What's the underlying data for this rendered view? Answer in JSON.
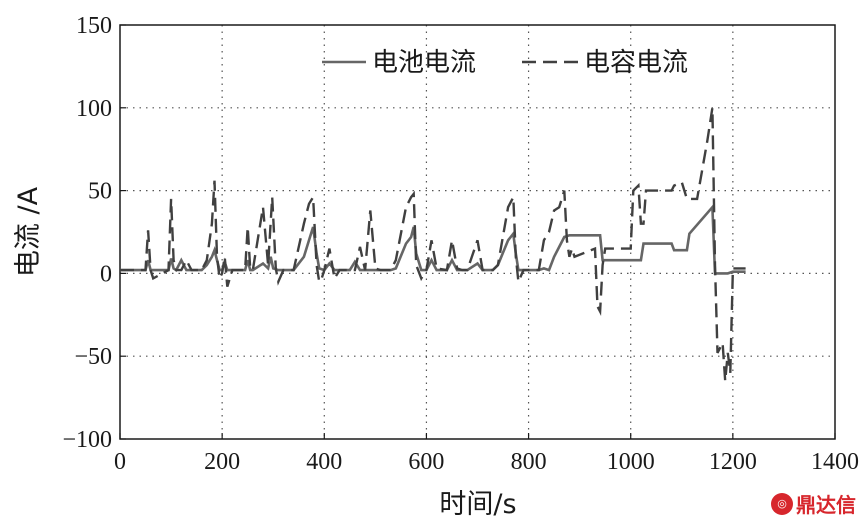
{
  "chart_data": {
    "type": "line",
    "title": "",
    "xlabel": "时间/s",
    "ylabel": "电流 /A",
    "xlim": [
      0,
      1400
    ],
    "ylim": [
      -100,
      150
    ],
    "xticks": [
      0,
      200,
      400,
      600,
      800,
      1000,
      1200,
      1400
    ],
    "yticks": [
      -100,
      -50,
      0,
      50,
      100,
      150
    ],
    "xtick_labels": [
      "0",
      "200",
      "400",
      "600",
      "800",
      "1000",
      "1200",
      "1400"
    ],
    "ytick_labels": [
      "−100",
      "−50",
      "0",
      "50",
      "100",
      "150"
    ],
    "grid": true,
    "legend_position": "top-right",
    "series": [
      {
        "name": "电池电流",
        "style": "solid",
        "color": "#666666",
        "x": [
          0,
          50,
          55,
          60,
          95,
          100,
          105,
          110,
          120,
          130,
          150,
          160,
          170,
          180,
          185,
          190,
          195,
          200,
          205,
          210,
          220,
          230,
          245,
          250,
          255,
          260,
          280,
          290,
          295,
          300,
          310,
          330,
          340,
          360,
          370,
          378,
          385,
          390,
          400,
          410,
          420,
          430,
          440,
          450,
          460,
          470,
          490,
          500,
          510,
          520,
          530,
          540,
          560,
          570,
          575,
          580,
          590,
          600,
          610,
          620,
          640,
          650,
          660,
          680,
          700,
          710,
          720,
          730,
          740,
          760,
          770,
          775,
          780,
          800,
          820,
          830,
          840,
          850,
          860,
          870,
          880,
          940,
          945,
          960,
          1020,
          1025,
          1080,
          1085,
          1110,
          1115,
          1160,
          1165,
          1190,
          1200,
          1225
        ],
        "y": [
          2,
          2,
          8,
          2,
          2,
          9,
          3,
          2,
          8,
          2,
          2,
          2,
          5,
          10,
          14,
          8,
          2,
          2,
          7,
          2,
          2,
          2,
          2,
          8,
          2,
          2,
          6,
          3,
          10,
          3,
          2,
          2,
          2,
          10,
          20,
          28,
          12,
          3,
          2,
          6,
          2,
          2,
          2,
          2,
          7,
          2,
          2,
          2,
          2,
          2,
          2,
          3,
          18,
          22,
          28,
          12,
          2,
          2,
          8,
          2,
          2,
          8,
          2,
          2,
          6,
          2,
          2,
          2,
          5,
          20,
          24,
          12,
          2,
          2,
          2,
          3,
          2,
          10,
          16,
          22,
          23,
          23,
          8,
          8,
          8,
          18,
          18,
          14,
          14,
          24,
          40,
          0,
          0,
          1,
          1
        ]
      },
      {
        "name": "电容电流",
        "style": "dashed",
        "color": "#404040",
        "x": [
          0,
          50,
          55,
          60,
          65,
          95,
          100,
          105,
          110,
          120,
          130,
          140,
          150,
          160,
          170,
          180,
          185,
          190,
          195,
          200,
          205,
          210,
          220,
          230,
          245,
          250,
          255,
          260,
          280,
          290,
          298,
          305,
          310,
          320,
          330,
          340,
          360,
          370,
          378,
          385,
          390,
          395,
          400,
          410,
          420,
          430,
          440,
          450,
          460,
          470,
          480,
          490,
          500,
          510,
          520,
          530,
          540,
          560,
          570,
          575,
          580,
          590,
          600,
          610,
          620,
          640,
          650,
          660,
          670,
          680,
          700,
          710,
          720,
          730,
          740,
          760,
          770,
          775,
          780,
          790,
          800,
          820,
          830,
          840,
          850,
          860,
          870,
          875,
          880,
          885,
          890,
          930,
          935,
          940,
          945,
          950,
          1000,
          1005,
          1015,
          1020,
          1025,
          1030,
          1080,
          1085,
          1100,
          1110,
          1115,
          1130,
          1150,
          1160,
          1165,
          1170,
          1180,
          1185,
          1190,
          1195,
          1200,
          1205,
          1225
        ],
        "y": [
          2,
          2,
          26,
          2,
          -3,
          2,
          45,
          8,
          2,
          2,
          8,
          2,
          2,
          2,
          8,
          30,
          56,
          10,
          -3,
          0,
          10,
          -8,
          2,
          2,
          2,
          28,
          3,
          2,
          40,
          5,
          46,
          3,
          -5,
          2,
          2,
          2,
          30,
          42,
          46,
          5,
          -5,
          -3,
          2,
          15,
          -3,
          2,
          2,
          2,
          2,
          16,
          2,
          38,
          3,
          2,
          2,
          2,
          8,
          40,
          46,
          48,
          5,
          -3,
          2,
          20,
          3,
          2,
          20,
          3,
          2,
          2,
          20,
          2,
          2,
          2,
          5,
          40,
          46,
          10,
          -5,
          2,
          2,
          2,
          20,
          25,
          38,
          40,
          50,
          20,
          10,
          15,
          10,
          15,
          -20,
          -23,
          5,
          15,
          15,
          50,
          53,
          30,
          30,
          50,
          50,
          53,
          55,
          45,
          45,
          45,
          80,
          100,
          5,
          -48,
          -42,
          -65,
          -48,
          -60,
          3,
          3,
          3
        ]
      }
    ]
  },
  "watermark": {
    "icon": "dingda-logo",
    "text": "鼎达信"
  }
}
